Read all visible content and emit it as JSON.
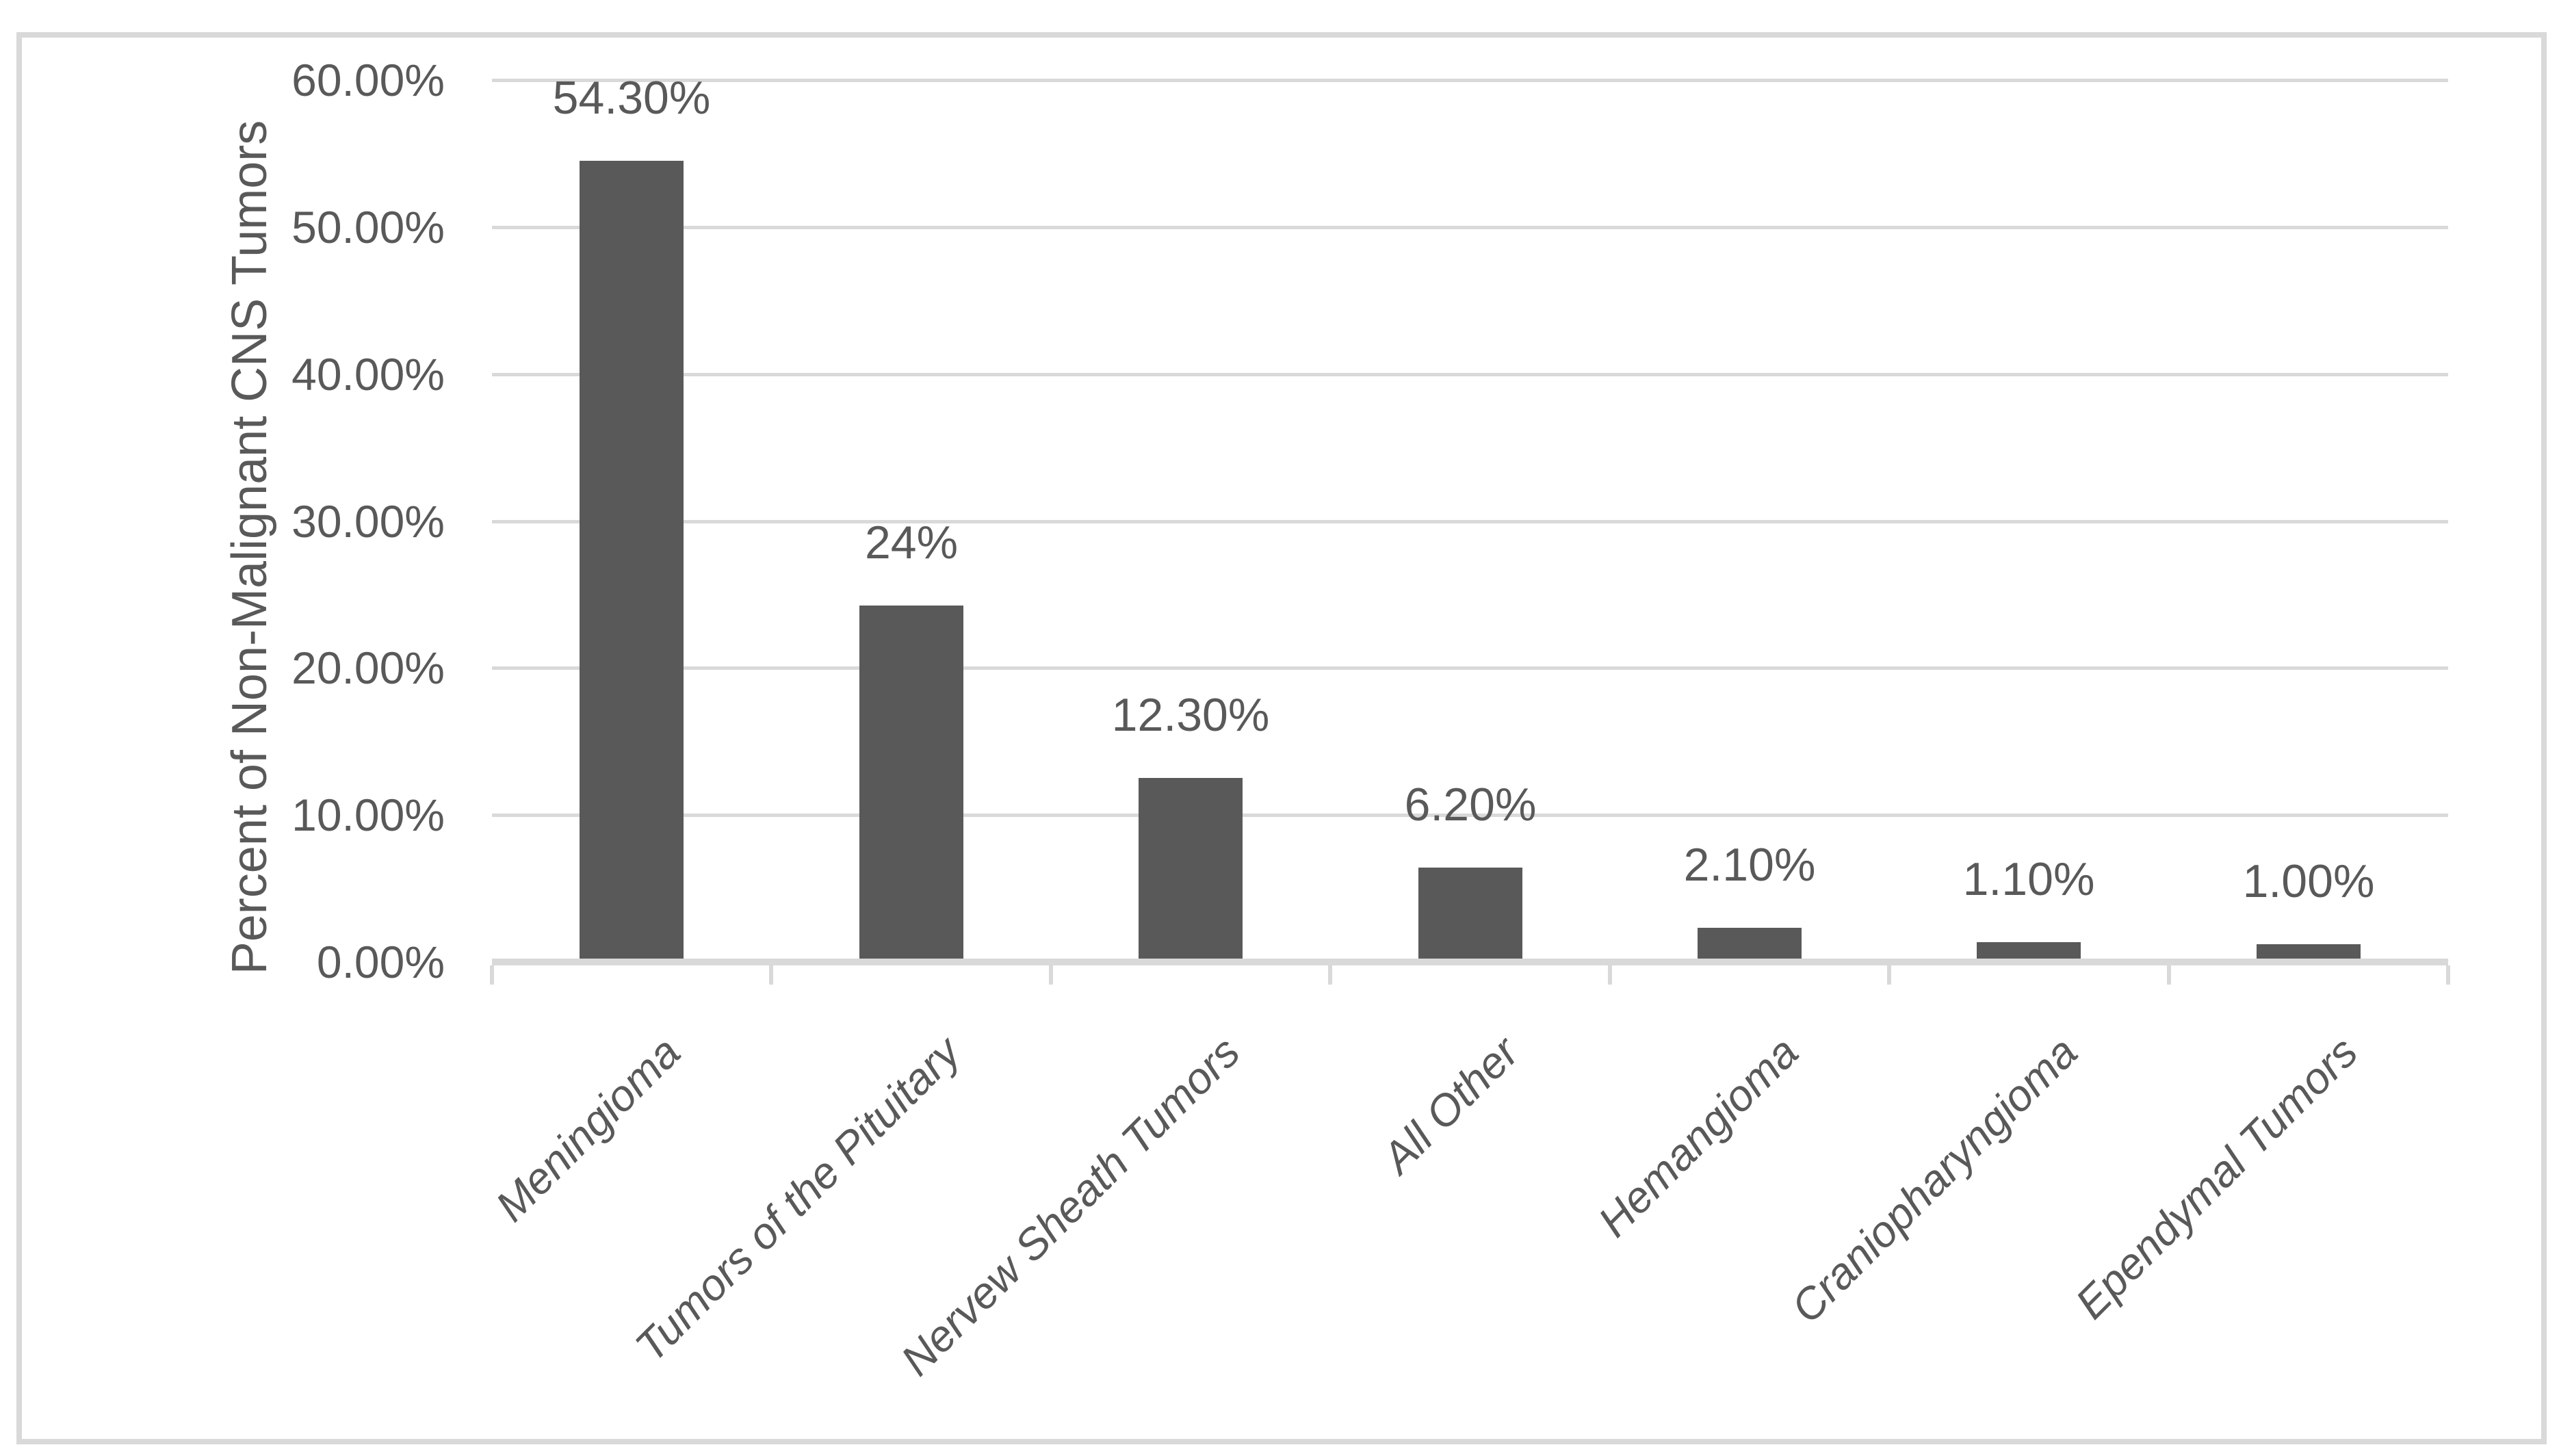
{
  "chart_data": {
    "type": "bar",
    "title": "",
    "categories": [
      "Meningioma",
      "Tumors of the Pituitary",
      "Nervew Sheath Tumors",
      "All Other",
      "Hemangioma",
      "Craniopharyngioma",
      "Ependymal Tumors"
    ],
    "values": [
      54.3,
      24,
      12.3,
      6.2,
      2.1,
      1.1,
      1.0
    ],
    "data_labels": [
      "54.30%",
      "24%",
      "12.30%",
      "6.20%",
      "2.10%",
      "1.10%",
      "1.00%"
    ],
    "xlabel": "",
    "ylabel": "Percent of Non-Malignant CNS Tumors",
    "y_ticks": [
      {
        "label": "60.00%",
        "value": 60
      },
      {
        "label": "50.00%",
        "value": 50
      },
      {
        "label": "40.00%",
        "value": 40
      },
      {
        "label": "30.00%",
        "value": 30
      },
      {
        "label": "20.00%",
        "value": 20
      },
      {
        "label": "10.00%",
        "value": 10
      },
      {
        "label": "0.00%",
        "value": 0
      }
    ],
    "ylim": [
      0,
      60
    ],
    "grid": "horizontal",
    "legend": "none",
    "colors": {
      "bar": "#595959",
      "gridline": "#d9d9d9",
      "text": "#595959",
      "border": "#d9d9d9",
      "background": "#ffffff"
    }
  }
}
